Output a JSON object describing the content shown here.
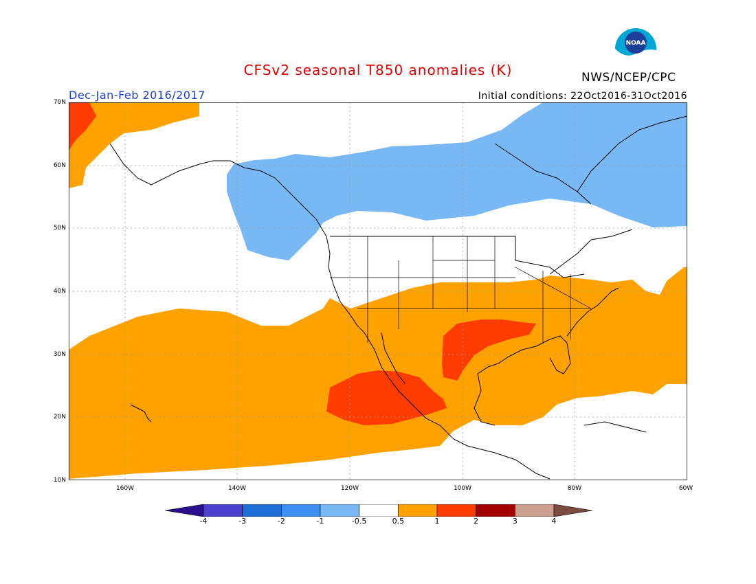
{
  "header": {
    "title": "CFSv2 seasonal T850 anomalies (K)",
    "org": "NWS/NCEP/CPC",
    "season": "Dec-Jan-Feb 2016/2017",
    "initial_conditions": "Initial conditions: 22Oct2016-31Oct2016",
    "logo_text": "NOAA"
  },
  "axes": {
    "lat_labels": [
      "70N",
      "60N",
      "50N",
      "40N",
      "30N",
      "20N",
      "10N"
    ],
    "lon_labels": [
      "160W",
      "140W",
      "120W",
      "100W",
      "80W",
      "60W"
    ]
  },
  "colorbar": {
    "ticks": [
      "-4",
      "-3",
      "-2",
      "-1",
      "-0.5",
      "0.5",
      "1",
      "2",
      "3",
      "4"
    ],
    "colors": [
      "#2a0f8f",
      "#4a3fcf",
      "#1e6fd6",
      "#3c8ff0",
      "#78b8f5",
      "#ffffff",
      "#ffa200",
      "#ff3c00",
      "#a30000",
      "#cca090",
      "#7a4b3f"
    ]
  },
  "colors": {
    "neg_weak": "#78b8f5",
    "pos_weak": "#ffa200",
    "pos_mid": "#ff3c00"
  }
}
